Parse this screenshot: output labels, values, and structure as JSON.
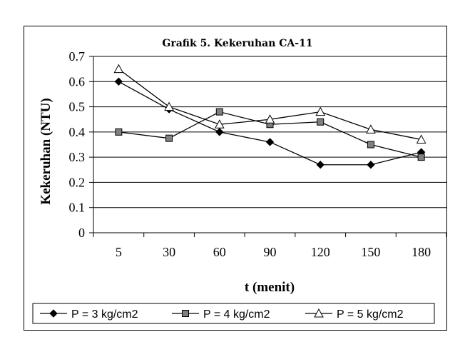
{
  "chart_data": {
    "type": "line",
    "title": "Grafik 5. Kekeruhan CA-11",
    "xlabel": "t (menit)",
    "ylabel": "Kekeruhan (NTU)",
    "categories": [
      "5",
      "30",
      "60",
      "90",
      "120",
      "150",
      "180"
    ],
    "ylim": [
      0,
      0.7
    ],
    "yticks": [
      "0",
      "0.1",
      "0.2",
      "0.3",
      "0.4",
      "0.5",
      "0.6",
      "0.7"
    ],
    "grid": true,
    "legend_position": "bottom",
    "series": [
      {
        "name": "P = 3 kg/cm2",
        "marker": "diamond",
        "color": "#000000",
        "values": [
          0.6,
          0.49,
          0.4,
          0.36,
          0.27,
          0.27,
          0.32
        ]
      },
      {
        "name": "P = 4 kg/cm2",
        "marker": "square",
        "color": "#000000",
        "values": [
          0.4,
          0.375,
          0.48,
          0.43,
          0.44,
          0.35,
          0.3
        ]
      },
      {
        "name": "P = 5 kg/cm2",
        "marker": "triangle",
        "color": "#000000",
        "values": [
          0.65,
          0.5,
          0.43,
          0.45,
          0.48,
          0.41,
          0.37
        ]
      }
    ]
  }
}
